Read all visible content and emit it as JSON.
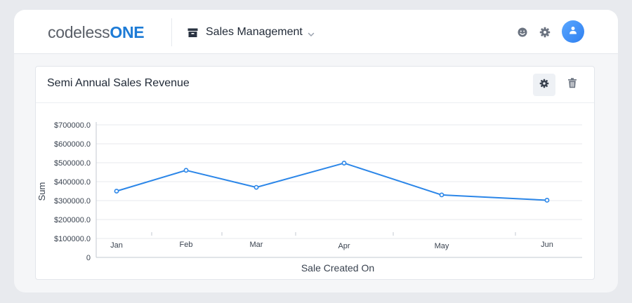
{
  "header": {
    "logo": {
      "part1": "codeless",
      "part2": "ONE"
    },
    "app_name": "Sales Management",
    "icons": [
      "box-icon",
      "chevron-down-icon",
      "smiley-icon",
      "gear-icon",
      "user-icon"
    ]
  },
  "card": {
    "title": "Semi Annual Sales Revenue",
    "buttons": [
      "gear-icon",
      "trash-icon"
    ]
  },
  "colors": {
    "accent": "#1d7bd6",
    "series": "#2b86e8"
  },
  "chart_data": {
    "type": "line",
    "categories": [
      "Jan",
      "Feb",
      "Mar",
      "Apr",
      "May",
      "Jun"
    ],
    "series": [
      {
        "values": [
          350000,
          460000,
          370000,
          498000,
          330000,
          302000
        ]
      }
    ],
    "xlabel": "Sale Created On",
    "ylabel": "Sum",
    "ylim": [
      0,
      700000
    ],
    "y_ticks": [
      "0",
      "$100000.0",
      "$200000.0",
      "$300000.0",
      "$400000.0",
      "$500000.0",
      "$600000.0",
      "$700000.0"
    ],
    "grid": true,
    "legend": "none"
  }
}
